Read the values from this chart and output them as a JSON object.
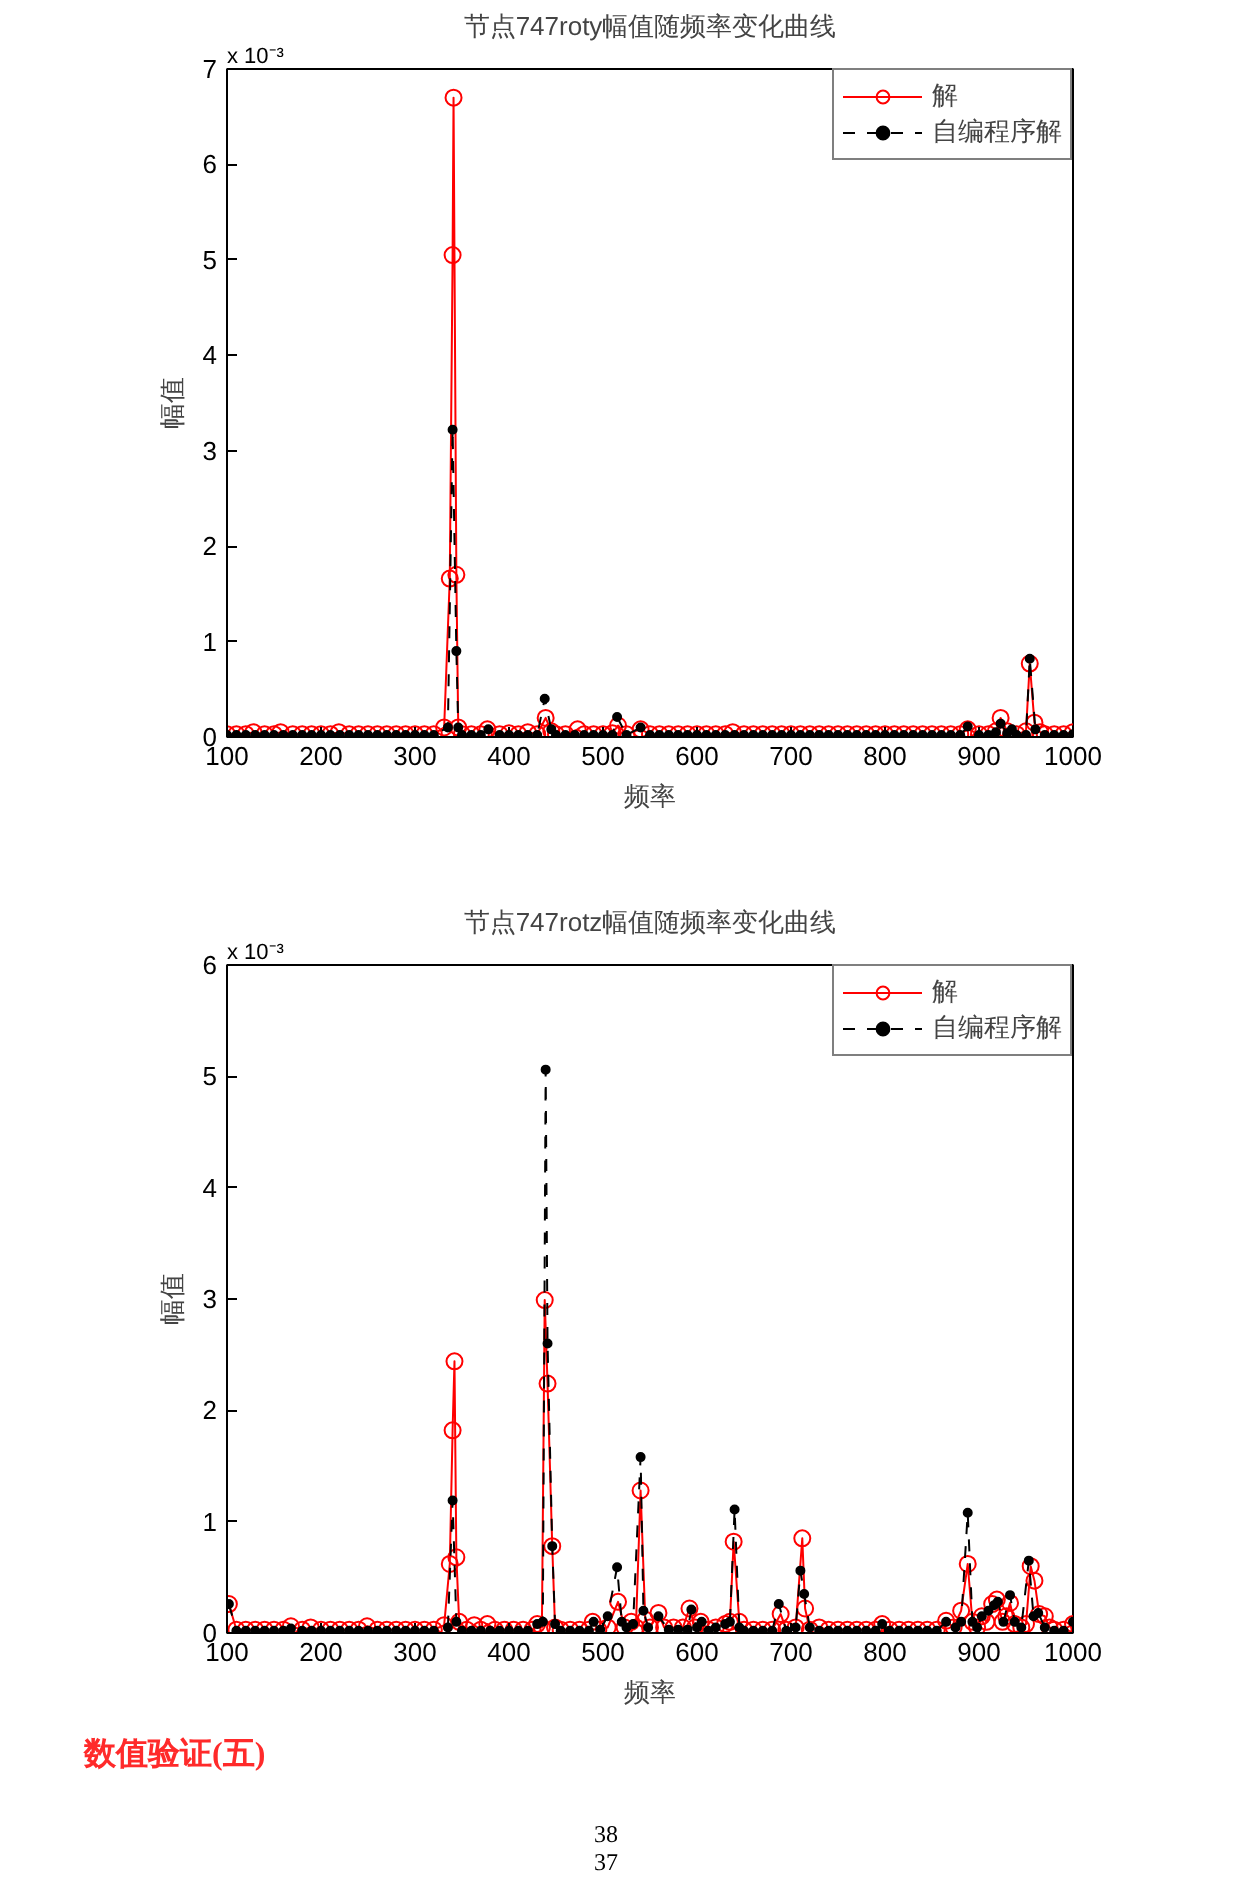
{
  "chart_data": [
    {
      "type": "line",
      "title": "节点747roty幅值随频率变化曲线",
      "xlabel": "频率",
      "ylabel": "幅值",
      "annotations": [
        "x 10⁻³"
      ],
      "xlim": [
        100,
        1000
      ],
      "xticks": [
        100,
        200,
        300,
        400,
        500,
        600,
        700,
        800,
        900,
        1000
      ],
      "ylim": [
        0,
        7
      ],
      "yticks": [
        0,
        1,
        2,
        3,
        4,
        5,
        6,
        7
      ],
      "grid": false,
      "legend": "top right",
      "series": [
        {
          "name": "解",
          "color": "#ff0000",
          "marker": "circle",
          "line_style": "solid",
          "x": [
            100,
            110,
            120,
            128,
            140,
            150,
            157,
            170,
            180,
            190,
            200,
            210,
            219,
            230,
            240,
            250,
            260,
            270,
            280,
            290,
            300,
            310,
            320,
            331,
            337,
            340,
            341,
            344,
            346,
            350,
            360,
            370,
            377,
            390,
            400,
            410,
            420,
            430,
            439,
            445,
            450,
            460,
            473,
            480,
            490,
            500,
            510,
            516,
            525,
            540,
            550,
            560,
            570,
            580,
            590,
            600,
            610,
            620,
            630,
            638,
            650,
            660,
            670,
            680,
            690,
            700,
            710,
            720,
            730,
            740,
            750,
            760,
            770,
            780,
            790,
            800,
            810,
            820,
            830,
            840,
            850,
            860,
            870,
            880,
            888,
            900,
            910,
            918,
            923,
            930,
            940,
            950,
            954,
            959,
            965,
            970,
            980,
            990,
            1000
          ],
          "values": [
            0.03,
            0.03,
            0.03,
            0.05,
            0.03,
            0.03,
            0.05,
            0.03,
            0.03,
            0.03,
            0.03,
            0.03,
            0.05,
            0.03,
            0.03,
            0.03,
            0.03,
            0.03,
            0.03,
            0.03,
            0.03,
            0.03,
            0.03,
            0.1,
            1.66,
            5.05,
            6.7,
            1.7,
            0.1,
            0.03,
            0.03,
            0.03,
            0.08,
            0.03,
            0.04,
            0.03,
            0.05,
            0.03,
            0.2,
            0.06,
            0.03,
            0.03,
            0.08,
            0.03,
            0.03,
            0.03,
            0.04,
            0.12,
            0.03,
            0.08,
            0.03,
            0.03,
            0.03,
            0.03,
            0.03,
            0.03,
            0.03,
            0.03,
            0.03,
            0.05,
            0.03,
            0.03,
            0.03,
            0.03,
            0.03,
            0.03,
            0.03,
            0.03,
            0.03,
            0.03,
            0.03,
            0.03,
            0.03,
            0.03,
            0.03,
            0.03,
            0.03,
            0.03,
            0.03,
            0.03,
            0.03,
            0.03,
            0.03,
            0.03,
            0.08,
            0.03,
            0.03,
            0.06,
            0.2,
            0.06,
            0.03,
            0.06,
            0.77,
            0.15,
            0.05,
            0.03,
            0.03,
            0.03,
            0.05
          ]
        },
        {
          "name": "自编程序解",
          "color": "#000000",
          "marker": "circle",
          "line_style": "dashed",
          "x": [
            100,
            110,
            120,
            130,
            140,
            150,
            160,
            170,
            180,
            190,
            200,
            210,
            220,
            230,
            240,
            250,
            260,
            270,
            280,
            290,
            300,
            310,
            320,
            335,
            340,
            344,
            346,
            350,
            360,
            370,
            378,
            390,
            400,
            410,
            420,
            430,
            438,
            445,
            450,
            460,
            470,
            480,
            490,
            500,
            510,
            515,
            525,
            540,
            550,
            560,
            570,
            580,
            590,
            600,
            610,
            620,
            630,
            640,
            650,
            660,
            670,
            680,
            690,
            700,
            710,
            720,
            730,
            740,
            750,
            760,
            770,
            780,
            790,
            800,
            810,
            820,
            830,
            840,
            850,
            860,
            870,
            880,
            888,
            900,
            910,
            918,
            923,
            930,
            935,
            940,
            950,
            954,
            960,
            970,
            980,
            990,
            1000
          ],
          "values": [
            0.02,
            0.02,
            0.02,
            0.02,
            0.02,
            0.02,
            0.02,
            0.02,
            0.02,
            0.02,
            0.02,
            0.02,
            0.02,
            0.02,
            0.02,
            0.02,
            0.02,
            0.02,
            0.02,
            0.02,
            0.02,
            0.02,
            0.02,
            0.1,
            3.22,
            0.9,
            0.1,
            0.02,
            0.02,
            0.02,
            0.08,
            0.02,
            0.02,
            0.02,
            0.02,
            0.02,
            0.4,
            0.08,
            0.02,
            0.02,
            0.02,
            0.02,
            0.02,
            0.02,
            0.02,
            0.21,
            0.02,
            0.1,
            0.02,
            0.02,
            0.02,
            0.02,
            0.02,
            0.02,
            0.02,
            0.02,
            0.02,
            0.02,
            0.02,
            0.02,
            0.02,
            0.02,
            0.02,
            0.02,
            0.02,
            0.02,
            0.02,
            0.02,
            0.02,
            0.02,
            0.02,
            0.02,
            0.02,
            0.02,
            0.02,
            0.02,
            0.02,
            0.02,
            0.02,
            0.02,
            0.02,
            0.02,
            0.11,
            0.02,
            0.02,
            0.05,
            0.14,
            0.04,
            0.08,
            0.02,
            0.02,
            0.82,
            0.08,
            0.02,
            0.02,
            0.02,
            0.03
          ]
        }
      ]
    },
    {
      "type": "line",
      "title": "节点747rotz幅值随频率变化曲线",
      "xlabel": "频率",
      "ylabel": "幅值",
      "annotations": [
        "x 10⁻³"
      ],
      "xlim": [
        100,
        1000
      ],
      "xticks": [
        100,
        200,
        300,
        400,
        500,
        600,
        700,
        800,
        900,
        1000
      ],
      "ylim": [
        0,
        6
      ],
      "yticks": [
        0,
        1,
        2,
        3,
        4,
        5,
        6
      ],
      "grid": false,
      "legend": "top right",
      "series": [
        {
          "name": "解",
          "color": "#ff0000",
          "marker": "circle",
          "line_style": "solid",
          "x": [
            102,
            110,
            120,
            130,
            140,
            150,
            160,
            168,
            180,
            189,
            200,
            210,
            220,
            230,
            240,
            249,
            260,
            270,
            280,
            290,
            300,
            310,
            320,
            331,
            337,
            340,
            342,
            344,
            347,
            355,
            363,
            370,
            377,
            385,
            395,
            405,
            415,
            425,
            430,
            435,
            438,
            441,
            446,
            449,
            455,
            465,
            475,
            485,
            489,
            495,
            505,
            516,
            523,
            530,
            535,
            540,
            545,
            550,
            559,
            565,
            575,
            585,
            592,
            598,
            604,
            612,
            620,
            630,
            635,
            639,
            645,
            650,
            660,
            670,
            680,
            689,
            695,
            705,
            712,
            715,
            720,
            730,
            740,
            750,
            760,
            770,
            780,
            790,
            797,
            805,
            815,
            825,
            835,
            845,
            855,
            865,
            873,
            881,
            888,
            893,
            898,
            903,
            908,
            914,
            919,
            925,
            929,
            933,
            938,
            945,
            950,
            955,
            959,
            964,
            970,
            975,
            980,
            990,
            1000
          ],
          "values": [
            0.26,
            0.03,
            0.03,
            0.03,
            0.03,
            0.03,
            0.03,
            0.06,
            0.03,
            0.05,
            0.03,
            0.03,
            0.03,
            0.03,
            0.03,
            0.06,
            0.03,
            0.03,
            0.03,
            0.03,
            0.03,
            0.03,
            0.03,
            0.07,
            0.62,
            1.82,
            2.44,
            0.68,
            0.1,
            0.03,
            0.07,
            0.03,
            0.08,
            0.03,
            0.03,
            0.03,
            0.03,
            0.03,
            0.08,
            0.05,
            2.99,
            2.24,
            0.78,
            0.05,
            0.03,
            0.03,
            0.03,
            0.03,
            0.1,
            0.03,
            0.05,
            0.28,
            0.05,
            0.1,
            0.05,
            1.28,
            0.12,
            0.05,
            0.18,
            0.05,
            0.05,
            0.05,
            0.22,
            0.05,
            0.1,
            0.03,
            0.05,
            0.08,
            0.1,
            0.82,
            0.1,
            0.03,
            0.03,
            0.03,
            0.03,
            0.17,
            0.03,
            0.05,
            0.85,
            0.22,
            0.03,
            0.05,
            0.03,
            0.03,
            0.03,
            0.03,
            0.03,
            0.03,
            0.08,
            0.03,
            0.03,
            0.03,
            0.03,
            0.03,
            0.03,
            0.11,
            0.05,
            0.2,
            0.62,
            0.1,
            0.05,
            0.15,
            0.1,
            0.26,
            0.3,
            0.1,
            0.15,
            0.27,
            0.08,
            0.05,
            0.08,
            0.6,
            0.47,
            0.17,
            0.15,
            0.05,
            0.03,
            0.03,
            0.08
          ]
        },
        {
          "name": "自编程序解",
          "color": "#000000",
          "marker": "circle",
          "line_style": "dashed",
          "x": [
            102,
            110,
            120,
            130,
            140,
            150,
            160,
            168,
            180,
            190,
            200,
            210,
            220,
            230,
            240,
            250,
            260,
            270,
            280,
            290,
            300,
            310,
            320,
            335,
            340,
            344,
            350,
            360,
            370,
            380,
            390,
            400,
            410,
            420,
            430,
            436,
            439,
            441,
            446,
            449,
            455,
            465,
            475,
            485,
            490,
            497,
            505,
            515,
            520,
            525,
            532,
            540,
            543,
            548,
            559,
            570,
            580,
            590,
            594,
            600,
            605,
            612,
            620,
            630,
            635,
            640,
            645,
            650,
            660,
            670,
            680,
            687,
            695,
            705,
            710,
            714,
            720,
            730,
            740,
            750,
            760,
            770,
            780,
            790,
            797,
            805,
            815,
            825,
            835,
            845,
            855,
            865,
            875,
            881,
            888,
            893,
            898,
            903,
            910,
            916,
            920,
            926,
            933,
            938,
            945,
            953,
            958,
            963,
            970,
            980,
            990,
            1000
          ],
          "values": [
            0.26,
            0.02,
            0.02,
            0.02,
            0.02,
            0.02,
            0.02,
            0.04,
            0.02,
            0.02,
            0.02,
            0.02,
            0.02,
            0.02,
            0.02,
            0.02,
            0.02,
            0.02,
            0.02,
            0.02,
            0.02,
            0.02,
            0.02,
            0.05,
            1.19,
            0.1,
            0.02,
            0.02,
            0.02,
            0.02,
            0.02,
            0.02,
            0.02,
            0.02,
            0.08,
            0.1,
            5.06,
            2.6,
            0.78,
            0.08,
            0.02,
            0.02,
            0.02,
            0.02,
            0.1,
            0.03,
            0.15,
            0.59,
            0.1,
            0.05,
            0.08,
            1.58,
            0.2,
            0.05,
            0.15,
            0.03,
            0.03,
            0.03,
            0.21,
            0.05,
            0.1,
            0.02,
            0.05,
            0.08,
            0.1,
            1.11,
            0.05,
            0.02,
            0.02,
            0.02,
            0.02,
            0.26,
            0.02,
            0.05,
            0.56,
            0.35,
            0.05,
            0.02,
            0.02,
            0.02,
            0.02,
            0.02,
            0.02,
            0.02,
            0.08,
            0.02,
            0.02,
            0.02,
            0.02,
            0.02,
            0.02,
            0.1,
            0.05,
            0.1,
            1.08,
            0.1,
            0.05,
            0.15,
            0.2,
            0.25,
            0.28,
            0.1,
            0.34,
            0.1,
            0.05,
            0.65,
            0.15,
            0.18,
            0.05,
            0.02,
            0.02,
            0.1
          ]
        }
      ]
    },
    {
      "type": "other",
      "title": "数值验证(五)",
      "annotations": [
        "38",
        "37"
      ]
    }
  ]
}
